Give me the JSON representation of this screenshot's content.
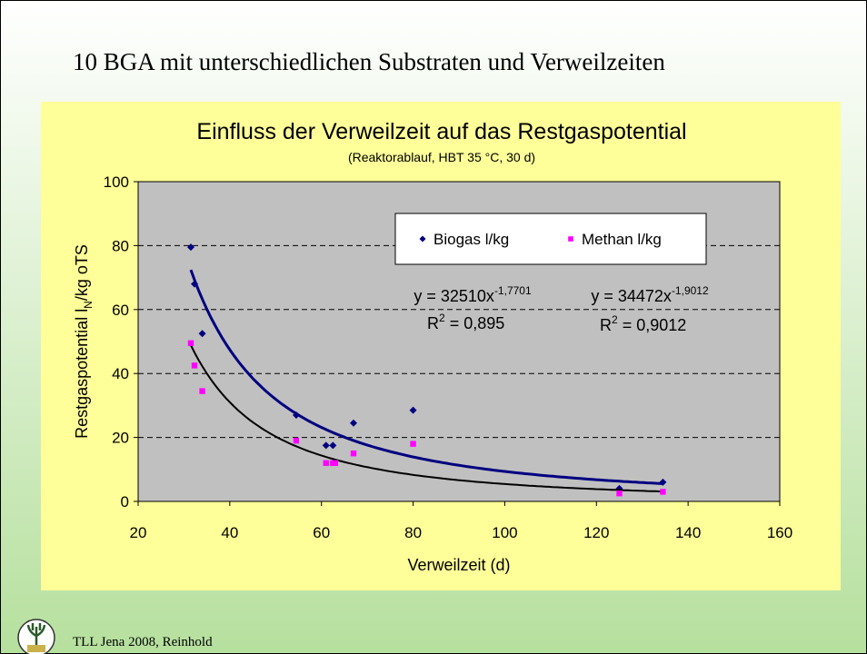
{
  "slide_title": "10 BGA mit unterschiedlichen Substraten und Verweilzeiten",
  "footer": "TLL Jena 2008,  Reinhold",
  "chart_data": {
    "type": "scatter",
    "title": "Einfluss der Verweilzeit auf das Restgaspotential",
    "subtitle": "(Reaktorablauf, HBT 35 °C, 30 d)",
    "x_label": "Verweilzeit (d)",
    "y_label": [
      "Restgaspotential l",
      "N",
      "/kg oTS"
    ],
    "xlim": [
      20,
      160
    ],
    "xticks": [
      20,
      40,
      60,
      80,
      100,
      120,
      140,
      160
    ],
    "ylim": [
      0,
      100
    ],
    "yticks": [
      0,
      20,
      40,
      60,
      80,
      100
    ],
    "grid": true,
    "legend": "top-right",
    "series": [
      {
        "name": "Biogas l/kg",
        "color": "#000080",
        "marker": "diamond",
        "x": [
          31.5,
          32.3,
          34,
          54.5,
          61,
          62.5,
          67,
          80,
          125,
          134.5
        ],
        "values": [
          79.5,
          68,
          52.5,
          27,
          17.5,
          17.5,
          24.5,
          28.5,
          4,
          6
        ],
        "trendline": {
          "coefficient": 32510,
          "exponent": -1.7701,
          "color": "#000080",
          "equation": [
            "y = 32510x",
            "-1,7701"
          ],
          "r_squared": [
            "R",
            "2",
            " = 0,895"
          ]
        }
      },
      {
        "name": "Methan l/kg",
        "color": "#ff00ff",
        "marker": "square",
        "x": [
          31.5,
          32.3,
          34,
          54.5,
          61,
          62.5,
          63,
          67,
          80,
          125,
          134.5
        ],
        "values": [
          49.5,
          42.5,
          34.5,
          19,
          12,
          12,
          12,
          15,
          18,
          2.5,
          3
        ],
        "trendline": {
          "coefficient": 34472,
          "exponent": -1.9012,
          "color": "#000000",
          "equation": [
            "y = 34472x",
            "-1,9012"
          ],
          "r_squared": [
            "R",
            "2",
            " = 0,9012"
          ]
        }
      }
    ]
  }
}
